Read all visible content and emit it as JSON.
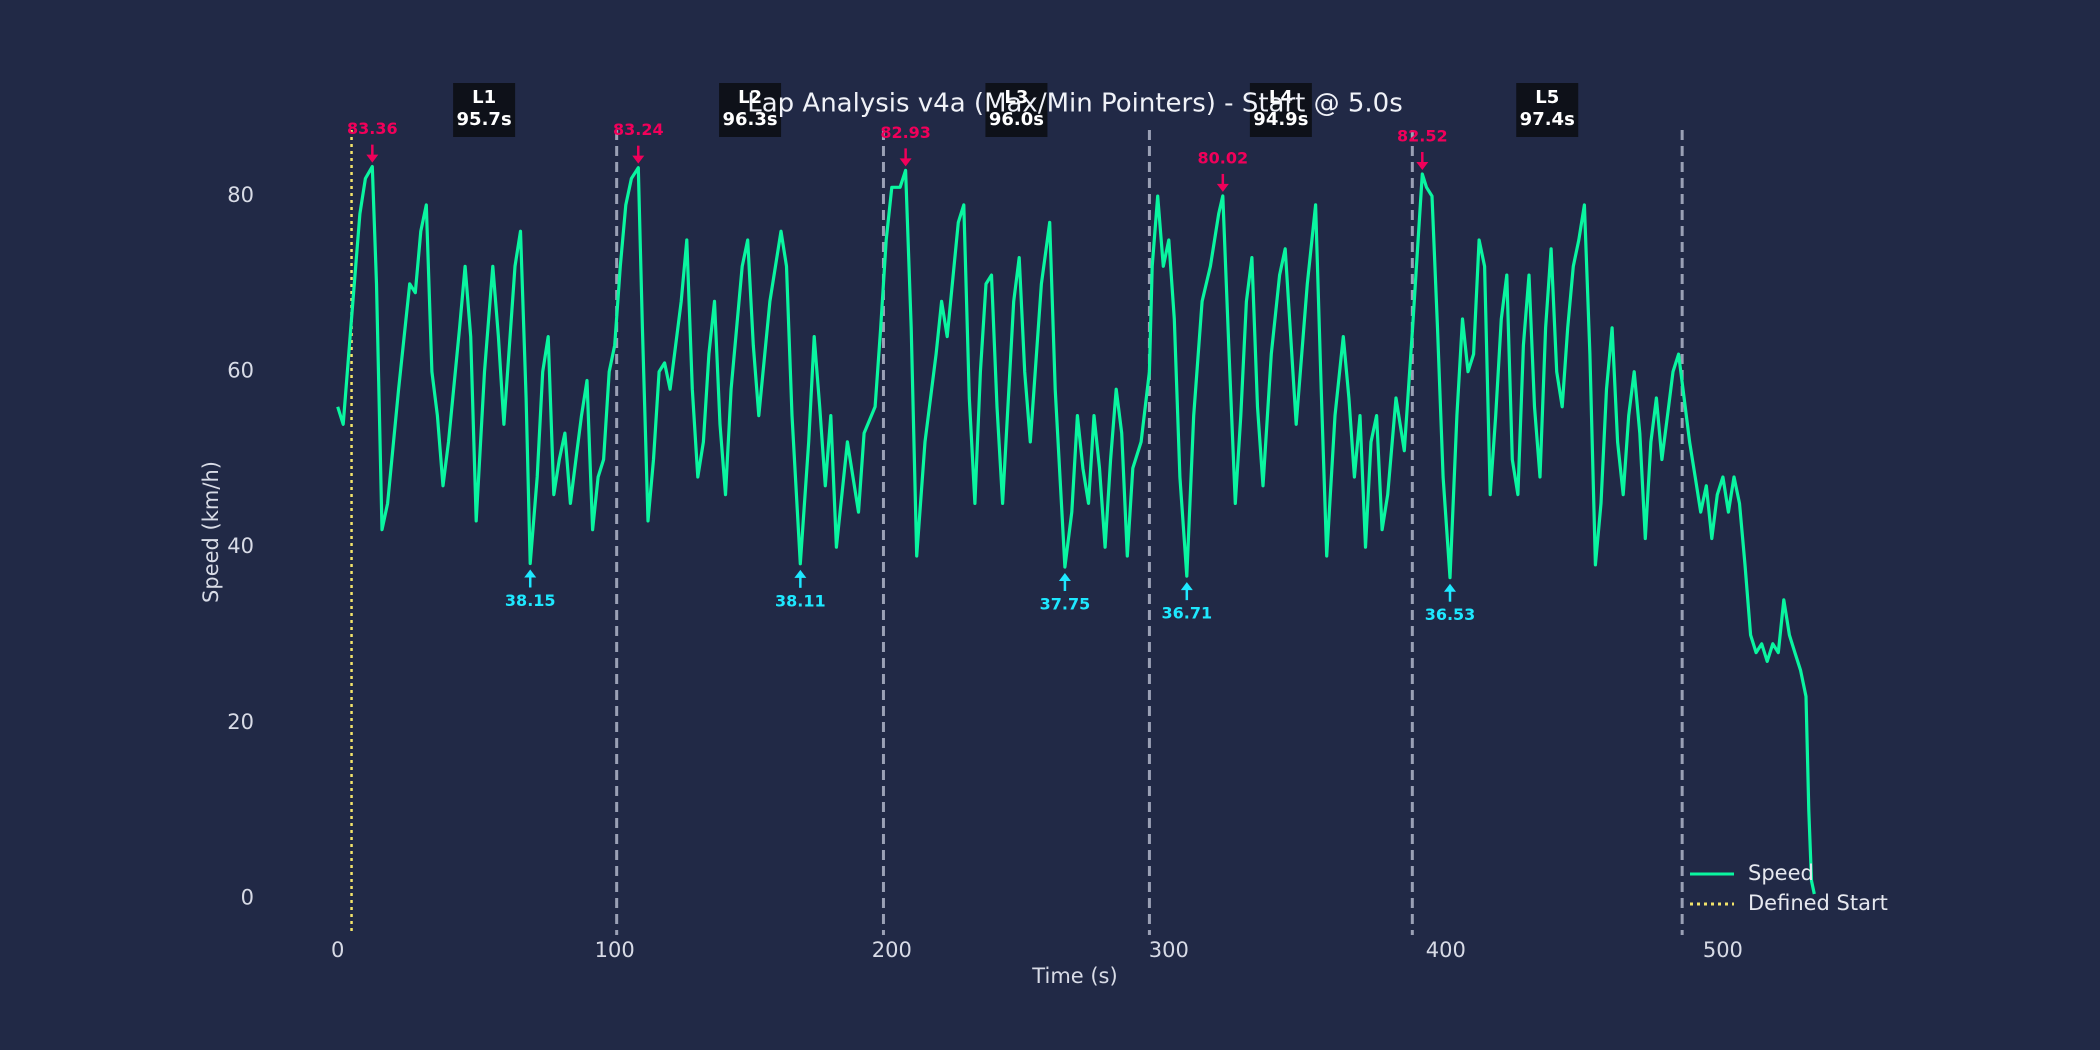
{
  "chart_data": {
    "type": "line",
    "title": "Lap Analysis v4a (Max/Min Pointers) - Start @ 5.0s",
    "x_label": "Time (s)",
    "y_label": "Speed (km/h)",
    "xlim": [
      -26.6,
      559.6
    ],
    "ylim": [
      -4.17,
      87.53
    ],
    "xticks": [
      0,
      100,
      200,
      300,
      400,
      500
    ],
    "yticks": [
      0,
      20,
      40,
      60,
      80
    ],
    "grid": false,
    "legend": "lower right",
    "x": [
      0,
      2,
      5,
      8,
      10,
      12.5,
      14,
      16,
      18,
      22,
      26,
      28,
      30,
      32,
      34,
      36,
      38,
      40,
      44,
      46,
      48,
      50,
      53,
      56,
      58,
      60,
      64,
      66,
      68,
      69.5,
      72,
      74,
      76,
      78,
      80,
      82,
      84,
      86,
      88,
      90,
      92,
      94,
      96,
      98,
      100,
      102,
      104,
      106,
      108.5,
      110,
      112,
      114,
      116,
      118,
      120,
      124,
      126,
      128,
      130,
      132,
      134,
      136,
      138,
      140,
      142,
      146,
      148,
      150,
      152,
      156,
      160,
      162,
      164,
      167,
      170,
      172,
      174,
      176,
      178,
      180,
      182,
      184,
      188,
      190,
      194,
      196,
      198,
      200,
      203,
      205,
      207,
      209,
      212,
      216,
      218,
      220,
      224,
      226,
      228,
      230,
      232,
      234,
      236,
      238,
      240,
      244,
      246,
      248,
      250,
      254,
      257,
      259,
      262.5,
      265,
      267,
      269,
      271,
      273,
      275,
      277,
      279,
      281,
      283,
      285,
      287,
      290,
      293,
      294,
      296,
      298,
      300,
      302,
      304,
      306.5,
      309,
      312,
      315,
      318,
      319.5,
      322,
      324,
      326,
      328,
      330,
      332,
      334,
      337,
      340,
      342,
      344,
      346,
      350,
      353,
      355,
      357,
      360,
      363,
      365,
      367,
      369,
      371,
      373,
      375,
      377,
      379,
      382,
      385,
      388,
      390,
      391.5,
      393,
      395,
      397,
      399,
      401.5,
      404,
      406,
      408,
      410,
      412,
      414,
      416,
      418,
      420,
      422,
      424,
      426,
      428,
      430,
      432,
      434,
      436,
      438,
      440,
      442,
      444,
      446,
      448,
      450,
      452,
      454,
      456,
      458,
      460,
      462,
      464,
      466,
      468,
      470,
      472,
      474,
      476,
      478,
      480,
      482,
      484,
      486,
      488,
      490,
      492,
      494,
      496,
      498,
      500,
      502,
      504,
      506,
      508,
      510,
      512,
      514,
      516,
      518,
      520,
      522,
      524,
      526,
      528,
      530,
      531,
      532,
      533
    ],
    "series": [
      {
        "name": "Speed",
        "color": "#0af5a0",
        "values": [
          56,
          54,
          66,
          78,
          82,
          83.36,
          70,
          42,
          45,
          58,
          70,
          69,
          76,
          79,
          60,
          55,
          47,
          52,
          65,
          72,
          64,
          43,
          60,
          72,
          64,
          54,
          72,
          76,
          57,
          38.15,
          48,
          60,
          64,
          46,
          50,
          53,
          45,
          50,
          55,
          59,
          42,
          48,
          50,
          60,
          63,
          72,
          79,
          82,
          83.24,
          65,
          43,
          50,
          60,
          61,
          58,
          68,
          75,
          58,
          48,
          52,
          62,
          68,
          54,
          46,
          58,
          72,
          75,
          63,
          55,
          68,
          76,
          72,
          55,
          38.11,
          52,
          64,
          56,
          47,
          55,
          40,
          46,
          52,
          44,
          53,
          56,
          65,
          75,
          81,
          81,
          82.93,
          65,
          39,
          52,
          62,
          68,
          64,
          77,
          79,
          57,
          45,
          60,
          70,
          71,
          56,
          45,
          68,
          73,
          60,
          52,
          70,
          77,
          58,
          37.75,
          44,
          55,
          49,
          45,
          55,
          49,
          40,
          50,
          58,
          53,
          39,
          49,
          52,
          60,
          72,
          80,
          72,
          75,
          66,
          48,
          36.71,
          55,
          68,
          72,
          78,
          80.02,
          60,
          45,
          55,
          68,
          73,
          56,
          47,
          62,
          71,
          74,
          64,
          54,
          70,
          79,
          58,
          39,
          55,
          64,
          57,
          48,
          55,
          40,
          52,
          55,
          42,
          46,
          57,
          51,
          65,
          75,
          82.52,
          81,
          80,
          65,
          48,
          36.53,
          55,
          66,
          60,
          62,
          75,
          72,
          46,
          55,
          66,
          71,
          50,
          46,
          63,
          71,
          56,
          48,
          65,
          74,
          60,
          56,
          65,
          72,
          75,
          79,
          62,
          38,
          45,
          58,
          65,
          52,
          46,
          55,
          60,
          53,
          41,
          52,
          57,
          50,
          55,
          60,
          62,
          57,
          52,
          48,
          44,
          47,
          41,
          46,
          48,
          44,
          48,
          45,
          38,
          30,
          28,
          29,
          27,
          29,
          28,
          34,
          30,
          28,
          26,
          23,
          10,
          2,
          0.5
        ]
      }
    ],
    "start_line": {
      "name": "Defined Start",
      "color": "#f2e36b",
      "x": 5.0
    },
    "lap_lines": [
      100.7,
      197.0,
      293.0,
      387.9,
      485.3
    ],
    "lap_line_color": "#9aa0b5",
    "laps": [
      {
        "label": "L1",
        "time": {
          "value": 95.7,
          "label": "95.7s"
        }
      },
      {
        "label": "L2",
        "time": {
          "value": 96.3,
          "label": "96.3s"
        }
      },
      {
        "label": "L3",
        "time": {
          "value": 96.0,
          "label": "96.0s"
        }
      },
      {
        "label": "L4",
        "time": {
          "value": 94.9,
          "label": "94.9s"
        }
      },
      {
        "label": "L5",
        "time": {
          "value": 97.4,
          "label": "97.4s"
        }
      }
    ],
    "max_color": "#f0005a",
    "min_color": "#1ee8ff",
    "max_points": [
      {
        "x": 12.5,
        "y": 83.36
      },
      {
        "x": 108.5,
        "y": 83.24
      },
      {
        "x": 205,
        "y": 82.93
      },
      {
        "x": 319.5,
        "y": 80.02
      },
      {
        "x": 391.5,
        "y": 82.52
      }
    ],
    "min_points": [
      {
        "x": 69.5,
        "y": 38.15
      },
      {
        "x": 167,
        "y": 38.11
      },
      {
        "x": 262.5,
        "y": 37.75
      },
      {
        "x": 306.5,
        "y": 36.71
      },
      {
        "x": 401.5,
        "y": 36.53
      }
    ]
  }
}
